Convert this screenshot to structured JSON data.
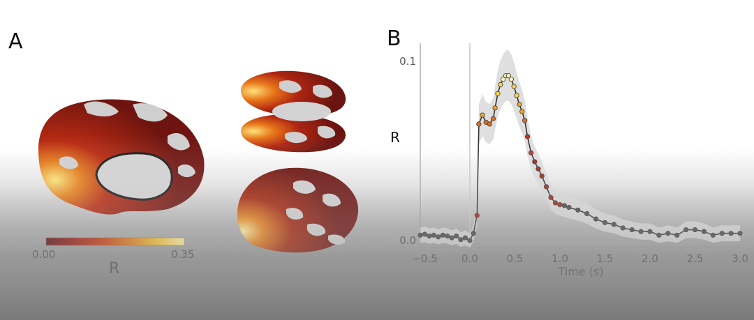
{
  "panel_a": {
    "label": "A",
    "colorbar": {
      "min_label": "0.00",
      "max_label": "0.35",
      "title": "R",
      "colors": [
        "#5a0d0d",
        "#9a1b12",
        "#c8380f",
        "#e0781a",
        "#f2c030",
        "#fdf1a0"
      ]
    }
  },
  "panel_b": {
    "label": "B"
  },
  "chart_data": {
    "type": "line",
    "title": "",
    "xlabel": "Time (s)",
    "ylabel": "R",
    "xlim": [
      -0.55,
      3.0
    ],
    "ylim": [
      0.0,
      0.1
    ],
    "x_ticks": [
      -0.5,
      0.0,
      0.5,
      1.0,
      1.5,
      2.0,
      2.5,
      3.0
    ],
    "x_tick_labels": [
      "−0.5",
      "0.0",
      "0.5",
      "1.0",
      "1.5",
      "2.0",
      "2.5",
      "3.0"
    ],
    "y_ticks": [
      0.0,
      0.1
    ],
    "y_tick_labels": [
      "0.0",
      "0.1"
    ],
    "stimulus_onset": 0.0,
    "series": [
      {
        "line_color": "#333333",
        "band_color": "#d9d9d9",
        "points": [
          {
            "x": -0.55,
            "y": 0.003
          },
          {
            "x": -0.5,
            "y": 0.0035
          },
          {
            "x": -0.45,
            "y": 0.0025
          },
          {
            "x": -0.4,
            "y": 0.003
          },
          {
            "x": -0.35,
            "y": 0.002
          },
          {
            "x": -0.3,
            "y": 0.003
          },
          {
            "x": -0.25,
            "y": 0.0025
          },
          {
            "x": -0.2,
            "y": 0.0015
          },
          {
            "x": -0.15,
            "y": 0.0025
          },
          {
            "x": -0.1,
            "y": 0.0005
          },
          {
            "x": -0.05,
            "y": 0.0015
          },
          {
            "x": 0.0,
            "y": 0.0
          },
          {
            "x": 0.04,
            "y": 0.004
          },
          {
            "x": 0.08,
            "y": 0.014
          },
          {
            "x": 0.1,
            "y": 0.065
          },
          {
            "x": 0.14,
            "y": 0.07
          },
          {
            "x": 0.18,
            "y": 0.066
          },
          {
            "x": 0.22,
            "y": 0.065
          },
          {
            "x": 0.26,
            "y": 0.068
          },
          {
            "x": 0.28,
            "y": 0.074
          },
          {
            "x": 0.31,
            "y": 0.082
          },
          {
            "x": 0.34,
            "y": 0.087
          },
          {
            "x": 0.37,
            "y": 0.09
          },
          {
            "x": 0.4,
            "y": 0.092
          },
          {
            "x": 0.43,
            "y": 0.092
          },
          {
            "x": 0.46,
            "y": 0.09
          },
          {
            "x": 0.49,
            "y": 0.086
          },
          {
            "x": 0.52,
            "y": 0.081
          },
          {
            "x": 0.55,
            "y": 0.076
          },
          {
            "x": 0.58,
            "y": 0.072
          },
          {
            "x": 0.61,
            "y": 0.067
          },
          {
            "x": 0.64,
            "y": 0.058
          },
          {
            "x": 0.68,
            "y": 0.049
          },
          {
            "x": 0.72,
            "y": 0.044
          },
          {
            "x": 0.76,
            "y": 0.04
          },
          {
            "x": 0.8,
            "y": 0.036
          },
          {
            "x": 0.85,
            "y": 0.03
          },
          {
            "x": 0.9,
            "y": 0.024
          },
          {
            "x": 0.95,
            "y": 0.021
          },
          {
            "x": 1.0,
            "y": 0.02
          },
          {
            "x": 1.05,
            "y": 0.0195
          },
          {
            "x": 1.1,
            "y": 0.0185
          },
          {
            "x": 1.2,
            "y": 0.017
          },
          {
            "x": 1.3,
            "y": 0.015
          },
          {
            "x": 1.4,
            "y": 0.012
          },
          {
            "x": 1.5,
            "y": 0.01
          },
          {
            "x": 1.6,
            "y": 0.009
          },
          {
            "x": 1.7,
            "y": 0.007
          },
          {
            "x": 1.8,
            "y": 0.006
          },
          {
            "x": 1.9,
            "y": 0.005
          },
          {
            "x": 2.0,
            "y": 0.005
          },
          {
            "x": 2.1,
            "y": 0.003
          },
          {
            "x": 2.2,
            "y": 0.004
          },
          {
            "x": 2.3,
            "y": 0.003
          },
          {
            "x": 2.4,
            "y": 0.006
          },
          {
            "x": 2.5,
            "y": 0.006
          },
          {
            "x": 2.6,
            "y": 0.005
          },
          {
            "x": 2.7,
            "y": 0.003
          },
          {
            "x": 2.8,
            "y": 0.004
          },
          {
            "x": 2.9,
            "y": 0.004
          },
          {
            "x": 3.0,
            "y": 0.004
          }
        ]
      }
    ]
  }
}
